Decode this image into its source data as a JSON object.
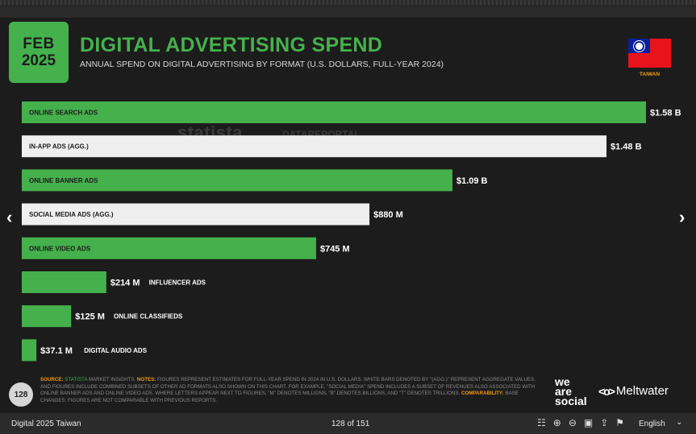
{
  "header": {
    "badge_month": "FEB",
    "badge_year": "2025",
    "title": "DIGITAL ADVERTISING SPEND",
    "subtitle": "ANNUAL SPEND ON DIGITAL ADVERTISING BY FORMAT (U.S. DOLLARS, FULL-YEAR 2024)",
    "country": "TAIWAN"
  },
  "watermarks": [
    "statista",
    "DATAREPORTAL"
  ],
  "colors": {
    "accent": "#45b14c",
    "white_bar": "#efefef",
    "orange": "#f39c12",
    "background": "#1c1c1c"
  },
  "chart_data": {
    "type": "bar",
    "orientation": "horizontal",
    "categories": [
      "ONLINE SEARCH ADS",
      "IN-APP ADS (AGG.)",
      "ONLINE BANNER ADS",
      "SOCIAL MEDIA ADS (AGG.)",
      "ONLINE VIDEO ADS",
      "INFLUENCER ADS",
      "ONLINE CLASSIFIEDS",
      "DIGITAL AUDIO ADS"
    ],
    "values": [
      1580,
      1480,
      1090,
      880,
      745,
      214,
      125,
      37.1
    ],
    "unit": "M USD",
    "value_labels": [
      "$1.58 B",
      "$1.48 B",
      "$1.09 B",
      "$880 M",
      "$745 M",
      "$214 M",
      "$125 M",
      "$37.1 M"
    ],
    "bar_colors": [
      "#45b14c",
      "#efefef",
      "#45b14c",
      "#efefef",
      "#45b14c",
      "#45b14c",
      "#45b14c",
      "#45b14c"
    ],
    "xlim": [
      0,
      1580
    ],
    "grid": false,
    "legend": "none"
  },
  "footer": {
    "page_number": "128",
    "source_label": "SOURCE:",
    "source_name": "STATISTA",
    "source_text": " MARKET INSIGHTS. ",
    "notes_label": "NOTES:",
    "notes_text": " FIGURES REPRESENT ESTIMATES FOR FULL-YEAR SPEND IN 2024 IN U.S. DOLLARS. WHITE BARS DENOTED BY \"(AGG.)\" REPRESENT AGGREGATE VALUES, AND FIGURES INCLUDE COMBINED SUBSETS OF OTHER AD FORMATS ALSO SHOWN ON THIS CHART. FOR EXAMPLE, \"SOCIAL MEDIA\" SPEND INCLUDES A SUBSET OF REVENUES ALSO ASSOCIATED WITH ONLINE BANNER ADS AND ONLINE VIDEO ADS. WHERE LETTERS APPEAR NEXT TO FIGURES, \"M\" DENOTES MILLIONS, \"B\" DENOTES BILLIONS, AND \"T\" DENOTES TRILLIONS. ",
    "comparability_label": "COMPARABILITY:",
    "comparability_text": " BASE CHANGES. FIGURES ARE NOT COMPARABLE WITH PREVIOUS REPORTS.",
    "logo_we_are_social": [
      "we",
      "are",
      "social"
    ],
    "logo_meltwater": "Meltwater"
  },
  "viewer": {
    "doc_title": "Digital 2025 Taiwan",
    "page_indicator": "128 of 151",
    "language": "English",
    "icons": [
      "grid-icon",
      "zoom-in-icon",
      "zoom-out-icon",
      "fit-screen-icon",
      "share-icon",
      "flag-icon"
    ]
  }
}
